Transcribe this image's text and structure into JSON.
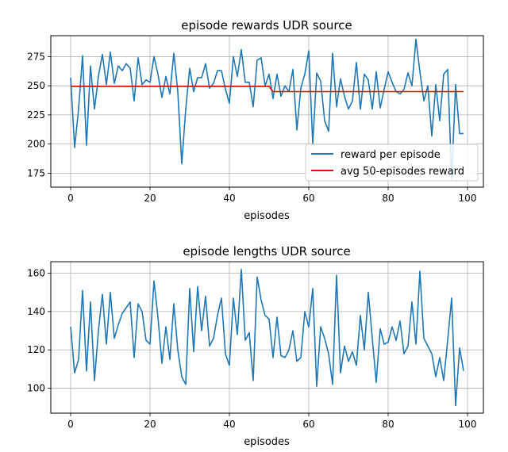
{
  "chart_data": [
    {
      "type": "line",
      "title": "episode rewards UDR source",
      "xlabel": "episodes",
      "ylabel": "",
      "xlim": [
        -5,
        104
      ],
      "ylim": [
        163,
        293
      ],
      "xticks": [
        0,
        20,
        40,
        60,
        80,
        100
      ],
      "yticks": [
        175,
        200,
        225,
        250,
        275
      ],
      "grid": true,
      "legend_position": "bottom-right",
      "series": [
        {
          "name": "reward per episode",
          "color": "#1f77b4",
          "x": [
            0,
            1,
            2,
            3,
            4,
            5,
            6,
            7,
            8,
            9,
            10,
            11,
            12,
            13,
            14,
            15,
            16,
            17,
            18,
            19,
            20,
            21,
            22,
            23,
            24,
            25,
            26,
            27,
            28,
            29,
            30,
            31,
            32,
            33,
            34,
            35,
            36,
            37,
            38,
            39,
            40,
            41,
            42,
            43,
            44,
            45,
            46,
            47,
            48,
            49,
            50,
            51,
            52,
            53,
            54,
            55,
            56,
            57,
            58,
            59,
            60,
            61,
            62,
            63,
            64,
            65,
            66,
            67,
            68,
            69,
            70,
            71,
            72,
            73,
            74,
            75,
            76,
            77,
            78,
            79,
            80,
            81,
            82,
            83,
            84,
            85,
            86,
            87,
            88,
            89,
            90,
            91,
            92,
            93,
            94,
            95,
            96,
            97,
            98,
            99
          ],
          "values": [
            257,
            197,
            230,
            276,
            199,
            267,
            230,
            258,
            277,
            251,
            279,
            252,
            267,
            263,
            269,
            265,
            237,
            274,
            251,
            255,
            253,
            275,
            260,
            240,
            258,
            243,
            278,
            245,
            183,
            230,
            265,
            245,
            257,
            257,
            269,
            248,
            252,
            263,
            263,
            247,
            235,
            275,
            258,
            281,
            253,
            253,
            232,
            272,
            274,
            250,
            260,
            239,
            260,
            241,
            250,
            245,
            264,
            212,
            248,
            260,
            280,
            200,
            261,
            254,
            220,
            211,
            278,
            232,
            256,
            241,
            230,
            237,
            270,
            230,
            260,
            255,
            230,
            262,
            231,
            247,
            262,
            253,
            245,
            243,
            247,
            261,
            250,
            290,
            262,
            237,
            250,
            207,
            251,
            220,
            260,
            264,
            170,
            251,
            209,
            209
          ]
        },
        {
          "name": "avg 50-episodes reward",
          "color": "#ff0000",
          "x": [
            0,
            50,
            51,
            99
          ],
          "values": [
            249.5,
            249.5,
            245.0,
            245.0
          ]
        }
      ]
    },
    {
      "type": "line",
      "title": "episode lengths UDR source",
      "xlabel": "episodes",
      "ylabel": "",
      "xlim": [
        -5,
        104
      ],
      "ylim": [
        87,
        166
      ],
      "xticks": [
        0,
        20,
        40,
        60,
        80,
        100
      ],
      "yticks": [
        100,
        120,
        140,
        160
      ],
      "grid": true,
      "legend_position": "none",
      "series": [
        {
          "name": "",
          "color": "#1f77b4",
          "x": [
            0,
            1,
            2,
            3,
            4,
            5,
            6,
            7,
            8,
            9,
            10,
            11,
            12,
            13,
            14,
            15,
            16,
            17,
            18,
            19,
            20,
            21,
            22,
            23,
            24,
            25,
            26,
            27,
            28,
            29,
            30,
            31,
            32,
            33,
            34,
            35,
            36,
            37,
            38,
            39,
            40,
            41,
            42,
            43,
            44,
            45,
            46,
            47,
            48,
            49,
            50,
            51,
            52,
            53,
            54,
            55,
            56,
            57,
            58,
            59,
            60,
            61,
            62,
            63,
            64,
            65,
            66,
            67,
            68,
            69,
            70,
            71,
            72,
            73,
            74,
            75,
            76,
            77,
            78,
            79,
            80,
            81,
            82,
            83,
            84,
            85,
            86,
            87,
            88,
            89,
            90,
            91,
            92,
            93,
            94,
            95,
            96,
            97,
            98,
            99
          ],
          "values": [
            132,
            108,
            115,
            151,
            109,
            145,
            104,
            130,
            149,
            123,
            150,
            126,
            133,
            139,
            142,
            145,
            116,
            144,
            140,
            125,
            123,
            156,
            137,
            113,
            132,
            115,
            144,
            120,
            106,
            102,
            152,
            119,
            153,
            130,
            148,
            122,
            126,
            138,
            147,
            118,
            112,
            147,
            128,
            162,
            125,
            129,
            104,
            158,
            146,
            138,
            136,
            116,
            137,
            117,
            116,
            120,
            130,
            114,
            116,
            140,
            132,
            152,
            101,
            132,
            126,
            118,
            102,
            159,
            108,
            122,
            114,
            119,
            112,
            138,
            120,
            150,
            126,
            103,
            131,
            123,
            124,
            132,
            125,
            135,
            118,
            122,
            145,
            123,
            161,
            126,
            122,
            118,
            106,
            116,
            104,
            125,
            147,
            91,
            121,
            109
          ]
        }
      ]
    }
  ]
}
